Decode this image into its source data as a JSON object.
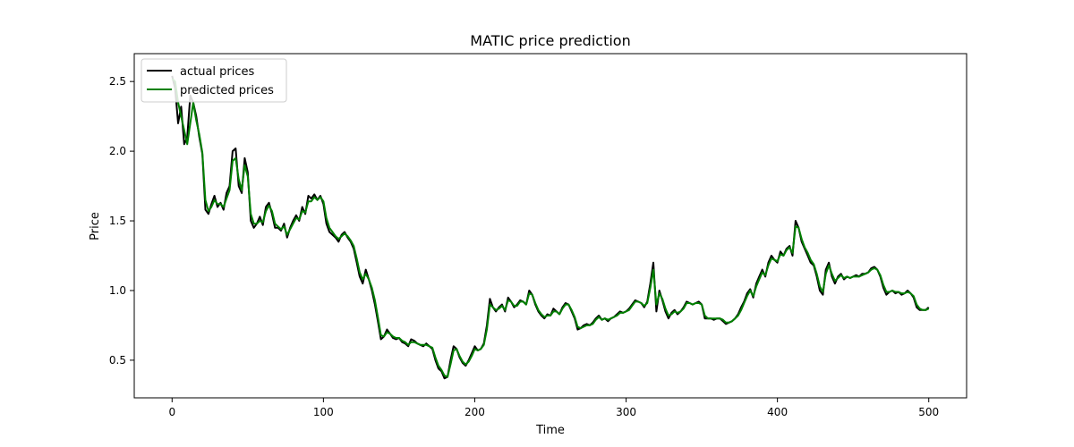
{
  "chart_data": {
    "type": "line",
    "title": "MATIC price prediction",
    "xlabel": "Time",
    "ylabel": "Price",
    "xlim": [
      -25,
      525
    ],
    "ylim": [
      0.23,
      2.7
    ],
    "xticks": [
      0,
      100,
      200,
      300,
      400,
      500
    ],
    "yticks": [
      0.5,
      1.0,
      1.5,
      2.0,
      2.5
    ],
    "legend_position": "upper-left",
    "grid": false,
    "colors": {
      "actual": "#000000",
      "predicted": "#008000"
    },
    "series": [
      {
        "name": "actual prices",
        "key": "actual",
        "x": [
          0,
          2,
          4,
          6,
          8,
          10,
          12,
          14,
          16,
          18,
          20,
          22,
          24,
          26,
          28,
          30,
          32,
          34,
          36,
          38,
          40,
          42,
          44,
          46,
          48,
          50,
          52,
          54,
          56,
          58,
          60,
          62,
          64,
          66,
          68,
          70,
          72,
          74,
          76,
          78,
          80,
          82,
          84,
          86,
          88,
          90,
          92,
          94,
          96,
          98,
          100,
          102,
          104,
          106,
          108,
          110,
          112,
          114,
          116,
          118,
          120,
          122,
          124,
          126,
          128,
          130,
          132,
          134,
          136,
          138,
          140,
          142,
          144,
          146,
          148,
          150,
          152,
          154,
          156,
          158,
          160,
          162,
          164,
          166,
          168,
          170,
          172,
          174,
          176,
          178,
          180,
          182,
          184,
          186,
          188,
          190,
          192,
          194,
          196,
          198,
          200,
          202,
          204,
          206,
          208,
          210,
          212,
          214,
          216,
          218,
          220,
          222,
          224,
          226,
          228,
          230,
          232,
          234,
          236,
          238,
          240,
          242,
          244,
          246,
          248,
          250,
          252,
          254,
          256,
          258,
          260,
          262,
          264,
          266,
          268,
          270,
          272,
          274,
          276,
          278,
          280,
          282,
          284,
          286,
          288,
          290,
          292,
          294,
          296,
          298,
          300,
          302,
          304,
          306,
          308,
          310,
          312,
          314,
          316,
          318,
          320,
          322,
          324,
          326,
          328,
          330,
          332,
          334,
          336,
          338,
          340,
          342,
          344,
          346,
          348,
          350,
          352,
          354,
          356,
          358,
          360,
          362,
          364,
          366,
          368,
          370,
          372,
          374,
          376,
          378,
          380,
          382,
          384,
          386,
          388,
          390,
          392,
          394,
          396,
          398,
          400,
          402,
          404,
          406,
          408,
          410,
          412,
          414,
          416,
          418,
          420,
          422,
          424,
          426,
          428,
          430,
          432,
          434,
          436,
          438,
          440,
          442,
          444,
          446,
          448,
          450,
          452,
          454,
          456,
          458,
          460,
          462,
          464,
          466,
          468,
          470,
          472,
          474,
          476,
          478,
          480,
          482,
          484,
          486,
          488,
          490,
          492,
          494,
          496,
          498,
          500
        ],
        "values": [
          2.54,
          2.45,
          2.2,
          2.32,
          2.05,
          2.1,
          2.4,
          2.35,
          2.25,
          2.1,
          1.98,
          1.58,
          1.55,
          1.62,
          1.68,
          1.6,
          1.63,
          1.58,
          1.7,
          1.75,
          2.0,
          2.02,
          1.75,
          1.7,
          1.95,
          1.85,
          1.5,
          1.45,
          1.48,
          1.53,
          1.47,
          1.6,
          1.63,
          1.55,
          1.45,
          1.45,
          1.43,
          1.48,
          1.38,
          1.45,
          1.5,
          1.54,
          1.5,
          1.6,
          1.55,
          1.68,
          1.66,
          1.69,
          1.65,
          1.68,
          1.62,
          1.48,
          1.42,
          1.4,
          1.38,
          1.35,
          1.4,
          1.42,
          1.38,
          1.35,
          1.3,
          1.2,
          1.1,
          1.05,
          1.15,
          1.08,
          1.0,
          0.9,
          0.78,
          0.65,
          0.67,
          0.72,
          0.69,
          0.66,
          0.65,
          0.66,
          0.63,
          0.62,
          0.6,
          0.65,
          0.64,
          0.62,
          0.61,
          0.6,
          0.62,
          0.6,
          0.58,
          0.5,
          0.44,
          0.42,
          0.37,
          0.38,
          0.5,
          0.6,
          0.58,
          0.52,
          0.48,
          0.46,
          0.5,
          0.55,
          0.6,
          0.57,
          0.58,
          0.62,
          0.75,
          0.94,
          0.88,
          0.85,
          0.88,
          0.9,
          0.85,
          0.95,
          0.92,
          0.88,
          0.9,
          0.93,
          0.92,
          0.9,
          1.0,
          0.97,
          0.9,
          0.85,
          0.82,
          0.8,
          0.83,
          0.82,
          0.87,
          0.85,
          0.83,
          0.88,
          0.91,
          0.9,
          0.85,
          0.8,
          0.72,
          0.73,
          0.75,
          0.76,
          0.75,
          0.77,
          0.8,
          0.82,
          0.79,
          0.8,
          0.78,
          0.8,
          0.81,
          0.83,
          0.85,
          0.84,
          0.85,
          0.87,
          0.9,
          0.93,
          0.92,
          0.91,
          0.88,
          0.92,
          1.05,
          1.2,
          0.85,
          1.0,
          0.93,
          0.85,
          0.8,
          0.84,
          0.86,
          0.83,
          0.85,
          0.88,
          0.92,
          0.91,
          0.9,
          0.91,
          0.92,
          0.9,
          0.8,
          0.8,
          0.8,
          0.79,
          0.8,
          0.8,
          0.78,
          0.76,
          0.77,
          0.78,
          0.8,
          0.83,
          0.88,
          0.92,
          0.98,
          1.01,
          0.95,
          1.05,
          1.1,
          1.15,
          1.1,
          1.2,
          1.25,
          1.22,
          1.2,
          1.28,
          1.25,
          1.3,
          1.32,
          1.25,
          1.5,
          1.45,
          1.35,
          1.3,
          1.25,
          1.2,
          1.18,
          1.1,
          1.0,
          0.97,
          1.15,
          1.2,
          1.1,
          1.05,
          1.1,
          1.12,
          1.08,
          1.1,
          1.09,
          1.1,
          1.11,
          1.1,
          1.12,
          1.12,
          1.13,
          1.16,
          1.17,
          1.15,
          1.1,
          1.02,
          0.97,
          0.99,
          1.0,
          0.98,
          0.99,
          0.97,
          0.98,
          1.0,
          0.98,
          0.95,
          0.88,
          0.86,
          0.86,
          0.86,
          0.88
        ]
      },
      {
        "name": "predicted prices",
        "key": "predicted",
        "x": [
          0,
          2,
          4,
          6,
          8,
          10,
          12,
          14,
          16,
          18,
          20,
          22,
          24,
          26,
          28,
          30,
          32,
          34,
          36,
          38,
          40,
          42,
          44,
          46,
          48,
          50,
          52,
          54,
          56,
          58,
          60,
          62,
          64,
          66,
          68,
          70,
          72,
          74,
          76,
          78,
          80,
          82,
          84,
          86,
          88,
          90,
          92,
          94,
          96,
          98,
          100,
          102,
          104,
          106,
          108,
          110,
          112,
          114,
          116,
          118,
          120,
          122,
          124,
          126,
          128,
          130,
          132,
          134,
          136,
          138,
          140,
          142,
          144,
          146,
          148,
          150,
          152,
          154,
          156,
          158,
          160,
          162,
          164,
          166,
          168,
          170,
          172,
          174,
          176,
          178,
          180,
          182,
          184,
          186,
          188,
          190,
          192,
          194,
          196,
          198,
          200,
          202,
          204,
          206,
          208,
          210,
          212,
          214,
          216,
          218,
          220,
          222,
          224,
          226,
          228,
          230,
          232,
          234,
          236,
          238,
          240,
          242,
          244,
          246,
          248,
          250,
          252,
          254,
          256,
          258,
          260,
          262,
          264,
          266,
          268,
          270,
          272,
          274,
          276,
          278,
          280,
          282,
          284,
          286,
          288,
          290,
          292,
          294,
          296,
          298,
          300,
          302,
          304,
          306,
          308,
          310,
          312,
          314,
          316,
          318,
          320,
          322,
          324,
          326,
          328,
          330,
          332,
          334,
          336,
          338,
          340,
          342,
          344,
          346,
          348,
          350,
          352,
          354,
          356,
          358,
          360,
          362,
          364,
          366,
          368,
          370,
          372,
          374,
          376,
          378,
          380,
          382,
          384,
          386,
          388,
          390,
          392,
          394,
          396,
          398,
          400,
          402,
          404,
          406,
          408,
          410,
          412,
          414,
          416,
          418,
          420,
          422,
          424,
          426,
          428,
          430,
          432,
          434,
          436,
          438,
          440,
          442,
          444,
          446,
          448,
          450,
          452,
          454,
          456,
          458,
          460,
          462,
          464,
          466,
          468,
          470,
          472,
          474,
          476,
          478,
          480,
          482,
          484,
          486,
          488,
          490,
          492,
          494,
          496,
          498,
          500
        ],
        "values": [
          2.52,
          2.5,
          2.35,
          2.25,
          2.15,
          2.05,
          2.2,
          2.35,
          2.22,
          2.12,
          1.99,
          1.65,
          1.57,
          1.6,
          1.65,
          1.62,
          1.62,
          1.6,
          1.66,
          1.72,
          1.93,
          1.95,
          1.8,
          1.72,
          1.9,
          1.82,
          1.55,
          1.48,
          1.48,
          1.5,
          1.49,
          1.57,
          1.61,
          1.57,
          1.48,
          1.46,
          1.44,
          1.46,
          1.4,
          1.44,
          1.48,
          1.52,
          1.51,
          1.57,
          1.56,
          1.64,
          1.64,
          1.67,
          1.65,
          1.67,
          1.64,
          1.52,
          1.45,
          1.42,
          1.39,
          1.37,
          1.39,
          1.41,
          1.39,
          1.36,
          1.32,
          1.23,
          1.13,
          1.08,
          1.12,
          1.08,
          1.02,
          0.93,
          0.81,
          0.68,
          0.67,
          0.7,
          0.69,
          0.67,
          0.66,
          0.66,
          0.64,
          0.63,
          0.61,
          0.63,
          0.63,
          0.62,
          0.61,
          0.61,
          0.61,
          0.6,
          0.59,
          0.52,
          0.46,
          0.43,
          0.39,
          0.38,
          0.47,
          0.57,
          0.58,
          0.53,
          0.49,
          0.47,
          0.49,
          0.53,
          0.58,
          0.57,
          0.58,
          0.61,
          0.72,
          0.9,
          0.88,
          0.86,
          0.87,
          0.89,
          0.86,
          0.93,
          0.92,
          0.89,
          0.89,
          0.92,
          0.92,
          0.9,
          0.98,
          0.97,
          0.91,
          0.86,
          0.83,
          0.81,
          0.82,
          0.82,
          0.85,
          0.85,
          0.83,
          0.87,
          0.9,
          0.9,
          0.86,
          0.81,
          0.74,
          0.73,
          0.74,
          0.75,
          0.75,
          0.76,
          0.79,
          0.81,
          0.79,
          0.8,
          0.79,
          0.8,
          0.81,
          0.82,
          0.84,
          0.84,
          0.85,
          0.86,
          0.89,
          0.92,
          0.92,
          0.91,
          0.89,
          0.91,
          1.02,
          1.15,
          0.9,
          0.98,
          0.94,
          0.87,
          0.82,
          0.83,
          0.85,
          0.84,
          0.85,
          0.87,
          0.91,
          0.91,
          0.9,
          0.91,
          0.91,
          0.9,
          0.82,
          0.8,
          0.8,
          0.8,
          0.8,
          0.8,
          0.79,
          0.77,
          0.77,
          0.78,
          0.8,
          0.82,
          0.86,
          0.91,
          0.96,
          1.0,
          0.96,
          1.03,
          1.08,
          1.13,
          1.11,
          1.18,
          1.23,
          1.22,
          1.21,
          1.26,
          1.25,
          1.29,
          1.31,
          1.27,
          1.46,
          1.45,
          1.37,
          1.31,
          1.27,
          1.22,
          1.19,
          1.12,
          1.03,
          0.99,
          1.12,
          1.18,
          1.12,
          1.07,
          1.09,
          1.11,
          1.09,
          1.1,
          1.09,
          1.1,
          1.1,
          1.1,
          1.11,
          1.12,
          1.13,
          1.15,
          1.16,
          1.15,
          1.11,
          1.04,
          0.99,
          0.99,
          1.0,
          0.99,
          0.99,
          0.98,
          0.98,
          0.99,
          0.98,
          0.96,
          0.9,
          0.87,
          0.86,
          0.86,
          0.87
        ]
      }
    ]
  }
}
